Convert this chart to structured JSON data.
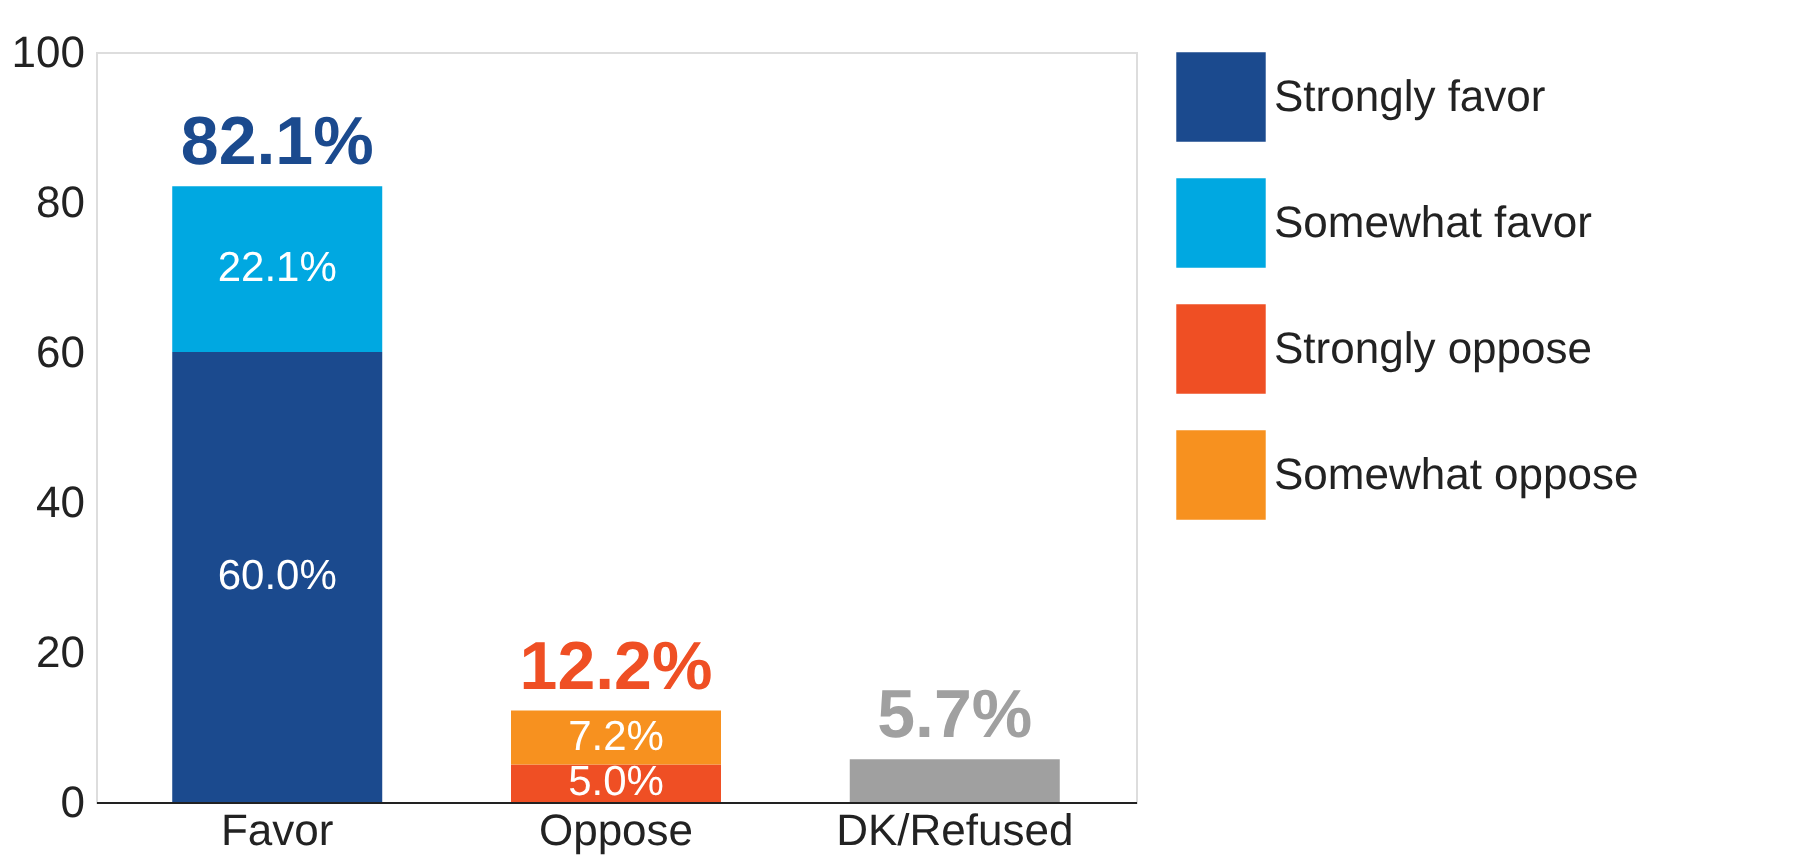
{
  "chart_data": {
    "type": "bar",
    "stacked": true,
    "categories": [
      "Favor",
      "Oppose",
      "DK/Refused"
    ],
    "series": [
      {
        "name": "Strongly favor",
        "color": "#1b4a8e",
        "values": [
          60.0,
          null,
          null
        ],
        "value_labels": [
          "60.0%",
          null,
          null
        ]
      },
      {
        "name": "Somewhat favor",
        "color": "#00a8e1",
        "values": [
          22.1,
          null,
          null
        ],
        "value_labels": [
          "22.1%",
          null,
          null
        ]
      },
      {
        "name": "Strongly oppose",
        "color": "#ef4f24",
        "values": [
          null,
          5.0,
          null
        ],
        "value_labels": [
          null,
          "5.0%",
          null
        ]
      },
      {
        "name": "Somewhat oppose",
        "color": "#f7911f",
        "values": [
          null,
          7.2,
          null
        ],
        "value_labels": [
          null,
          "7.2%",
          null
        ]
      },
      {
        "color": "#a0a0a0",
        "values": [
          null,
          null,
          5.7
        ]
      }
    ],
    "totals": [
      "82.1%",
      "12.2%",
      "5.7%"
    ],
    "ylim": [
      0,
      100
    ],
    "yticks": [
      0,
      20,
      40,
      60,
      80,
      100
    ],
    "grid": false,
    "legend": "top right"
  }
}
